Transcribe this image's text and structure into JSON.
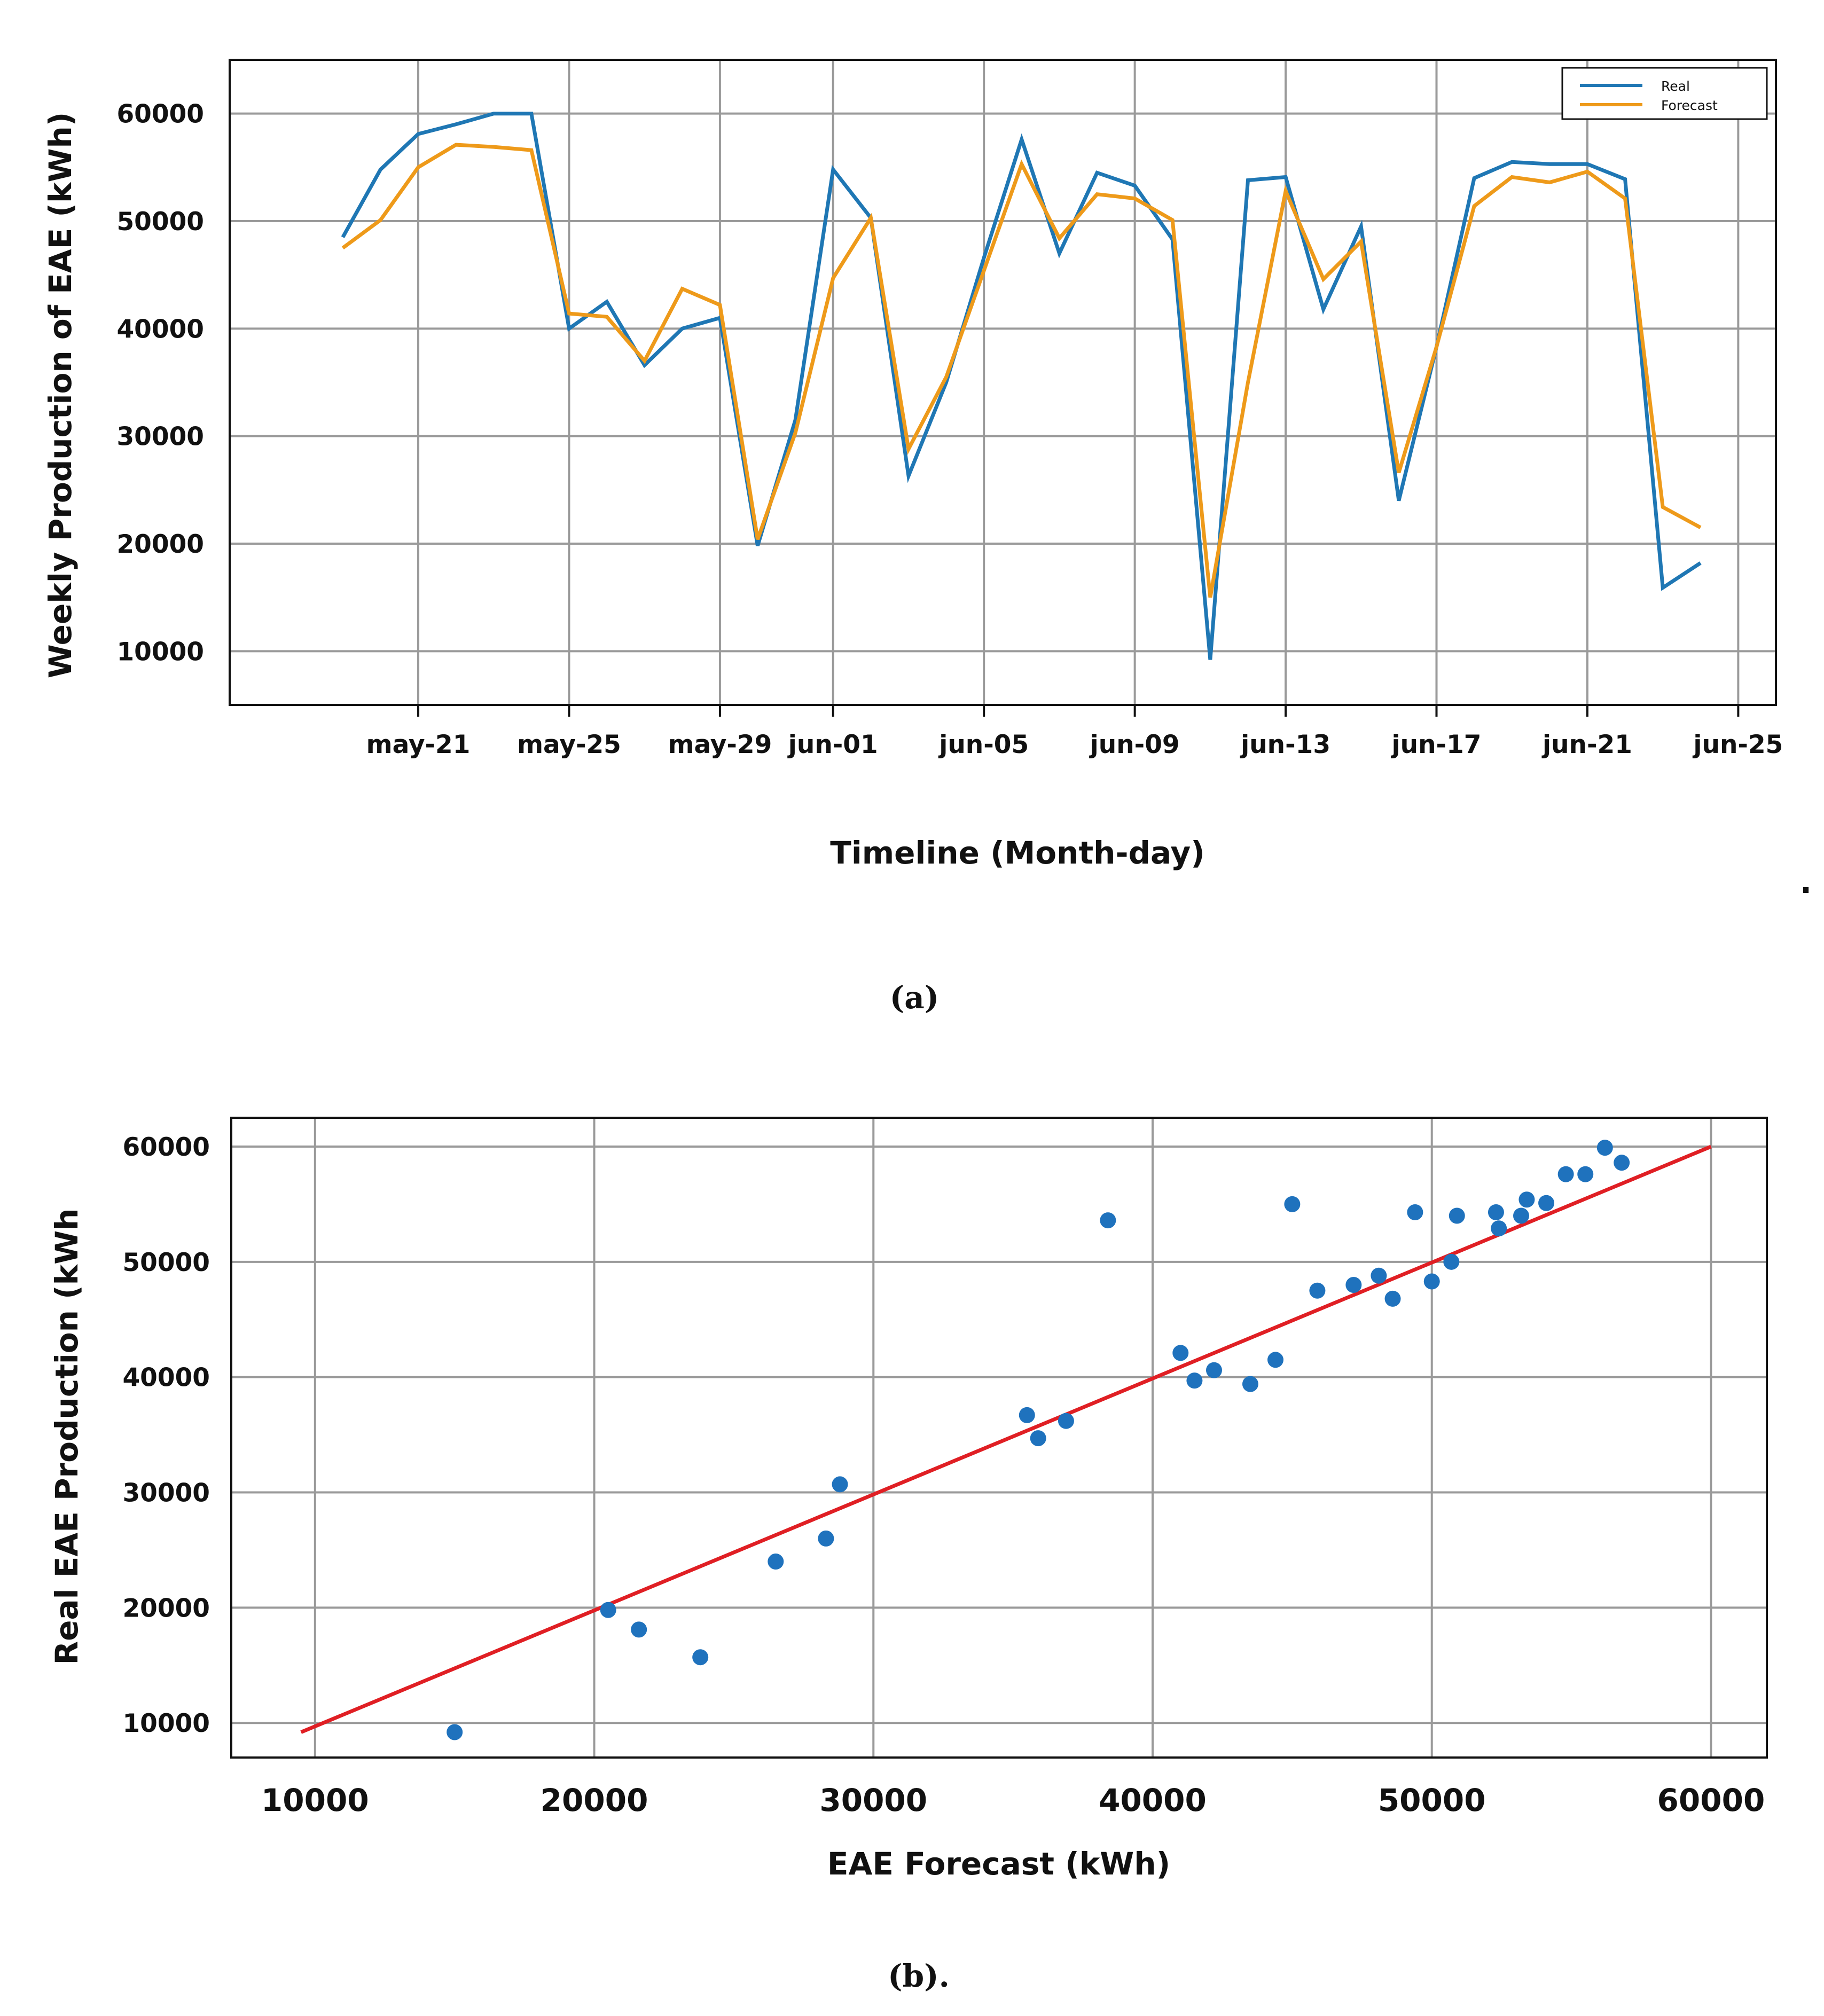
{
  "chart_data": [
    {
      "type": "line",
      "caption": "(a)",
      "xlabel": "Timeline (Month-day)",
      "ylabel": "Weekly Production of EAE (kWh)",
      "ylim": [
        5000,
        65000
      ],
      "yticks": [
        10000,
        20000,
        30000,
        40000,
        50000,
        60000
      ],
      "xticks": [
        {
          "label": "may-21",
          "date": "2020-05-21"
        },
        {
          "label": "may-25",
          "date": "2020-05-25"
        },
        {
          "label": "may-29",
          "date": "2020-05-29"
        },
        {
          "label": "jun-01",
          "date": "2020-06-01"
        },
        {
          "label": "jun-05",
          "date": "2020-06-05"
        },
        {
          "label": "jun-09",
          "date": "2020-06-09"
        },
        {
          "label": "jun-13",
          "date": "2020-06-13"
        },
        {
          "label": "jun-17",
          "date": "2020-06-17"
        },
        {
          "label": "jun-21",
          "date": "2020-06-21"
        },
        {
          "label": "jun-25",
          "date": "2020-06-25"
        }
      ],
      "xlim": [
        "2020-05-16",
        "2020-06-26"
      ],
      "grid": true,
      "legend_position": "top-right",
      "colors": {
        "Real": "#1f77b4",
        "Forecast": "#ee9a1a"
      },
      "series": [
        {
          "name": "Real",
          "x": [
            "2020-05-19",
            "2020-05-20",
            "2020-05-21",
            "2020-05-22",
            "2020-05-23",
            "2020-05-24",
            "2020-05-25",
            "2020-05-26",
            "2020-05-27",
            "2020-05-28",
            "2020-05-29",
            "2020-05-30",
            "2020-05-31",
            "2020-06-01",
            "2020-06-02",
            "2020-06-03",
            "2020-06-04",
            "2020-06-05",
            "2020-06-06",
            "2020-06-07",
            "2020-06-08",
            "2020-06-09",
            "2020-06-10",
            "2020-06-11",
            "2020-06-12",
            "2020-06-13",
            "2020-06-14",
            "2020-06-15",
            "2020-06-16",
            "2020-06-17",
            "2020-06-18",
            "2020-06-19",
            "2020-06-20",
            "2020-06-21",
            "2020-06-22",
            "2020-06-23",
            "2020-06-24"
          ],
          "y": [
            48500,
            54800,
            58100,
            59000,
            60000,
            60000,
            40000,
            42500,
            36600,
            40000,
            41000,
            19800,
            31500,
            54800,
            50300,
            26300,
            35000,
            46600,
            57600,
            47000,
            54500,
            53300,
            48300,
            9200,
            53800,
            54100,
            41800,
            49500,
            24000,
            38300,
            54000,
            55500,
            55300,
            55300,
            53900,
            15900,
            18200
          ]
        },
        {
          "name": "Forecast",
          "x": [
            "2020-05-19",
            "2020-05-20",
            "2020-05-21",
            "2020-05-22",
            "2020-05-23",
            "2020-05-24",
            "2020-05-25",
            "2020-05-26",
            "2020-05-27",
            "2020-05-28",
            "2020-05-29",
            "2020-05-30",
            "2020-05-31",
            "2020-06-01",
            "2020-06-02",
            "2020-06-03",
            "2020-06-04",
            "2020-06-05",
            "2020-06-06",
            "2020-06-07",
            "2020-06-08",
            "2020-06-09",
            "2020-06-10",
            "2020-06-11",
            "2020-06-12",
            "2020-06-13",
            "2020-06-14",
            "2020-06-15",
            "2020-06-16",
            "2020-06-17",
            "2020-06-18",
            "2020-06-19",
            "2020-06-20",
            "2020-06-21",
            "2020-06-22",
            "2020-06-23",
            "2020-06-24"
          ],
          "y": [
            47500,
            50100,
            55000,
            57100,
            56900,
            56600,
            41400,
            41100,
            37000,
            43700,
            42200,
            20400,
            30300,
            44700,
            50300,
            28800,
            35500,
            45400,
            55300,
            48400,
            52500,
            52100,
            50100,
            15000,
            35000,
            52800,
            44600,
            48100,
            26600,
            38300,
            51400,
            54100,
            53600,
            54600,
            52100,
            23400,
            21500
          ]
        }
      ]
    },
    {
      "type": "scatter",
      "caption": "(b).",
      "xlabel": "EAE Forecast (kWh)",
      "ylabel": "Real EAE Production (kWh",
      "xlim": [
        7000,
        62000
      ],
      "ylim": [
        7000,
        62500
      ],
      "xticks": [
        10000,
        20000,
        30000,
        40000,
        50000,
        60000
      ],
      "yticks": [
        10000,
        20000,
        30000,
        40000,
        50000,
        60000
      ],
      "grid": true,
      "colors": {
        "points": "#1f72bd",
        "fit_line": "#e01f24"
      },
      "fit_line": {
        "x": [
          9500,
          60000
        ],
        "y": [
          9200,
          60000
        ]
      },
      "points": {
        "x": [
          15000,
          20500,
          21600,
          23800,
          26500,
          28300,
          28800,
          35500,
          35900,
          36900,
          38400,
          41000,
          41500,
          42200,
          43500,
          44400,
          45000,
          45900,
          47200,
          48100,
          48600,
          49400,
          50000,
          50700,
          50900,
          52300,
          52400,
          53200,
          53400,
          54100,
          54800,
          55500,
          56200,
          56800
        ],
        "y": [
          9200,
          19800,
          18100,
          15700,
          24000,
          26000,
          30700,
          36700,
          34700,
          36200,
          53600,
          42100,
          39700,
          40600,
          39400,
          41500,
          55000,
          47500,
          48000,
          48800,
          46800,
          54300,
          48300,
          50000,
          54000,
          54300,
          52900,
          54000,
          55400,
          55100,
          57600,
          57600,
          59900,
          58600
        ]
      }
    }
  ],
  "legend": {
    "real_label": "Real",
    "forecast_label": "Forecast"
  },
  "stray_mark": "."
}
